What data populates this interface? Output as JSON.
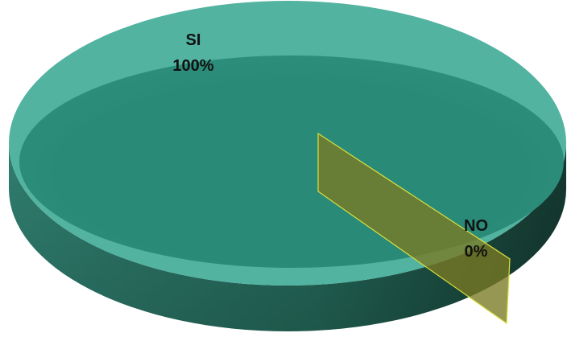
{
  "chart_data": {
    "type": "pie",
    "style": "3d",
    "slices": [
      {
        "label": "SI",
        "value": 100,
        "display": "100%",
        "color": "#2a8a78"
      },
      {
        "label": "NO",
        "value": 0,
        "display": "0%",
        "color": "#7a7a24"
      }
    ],
    "legend": "none"
  }
}
